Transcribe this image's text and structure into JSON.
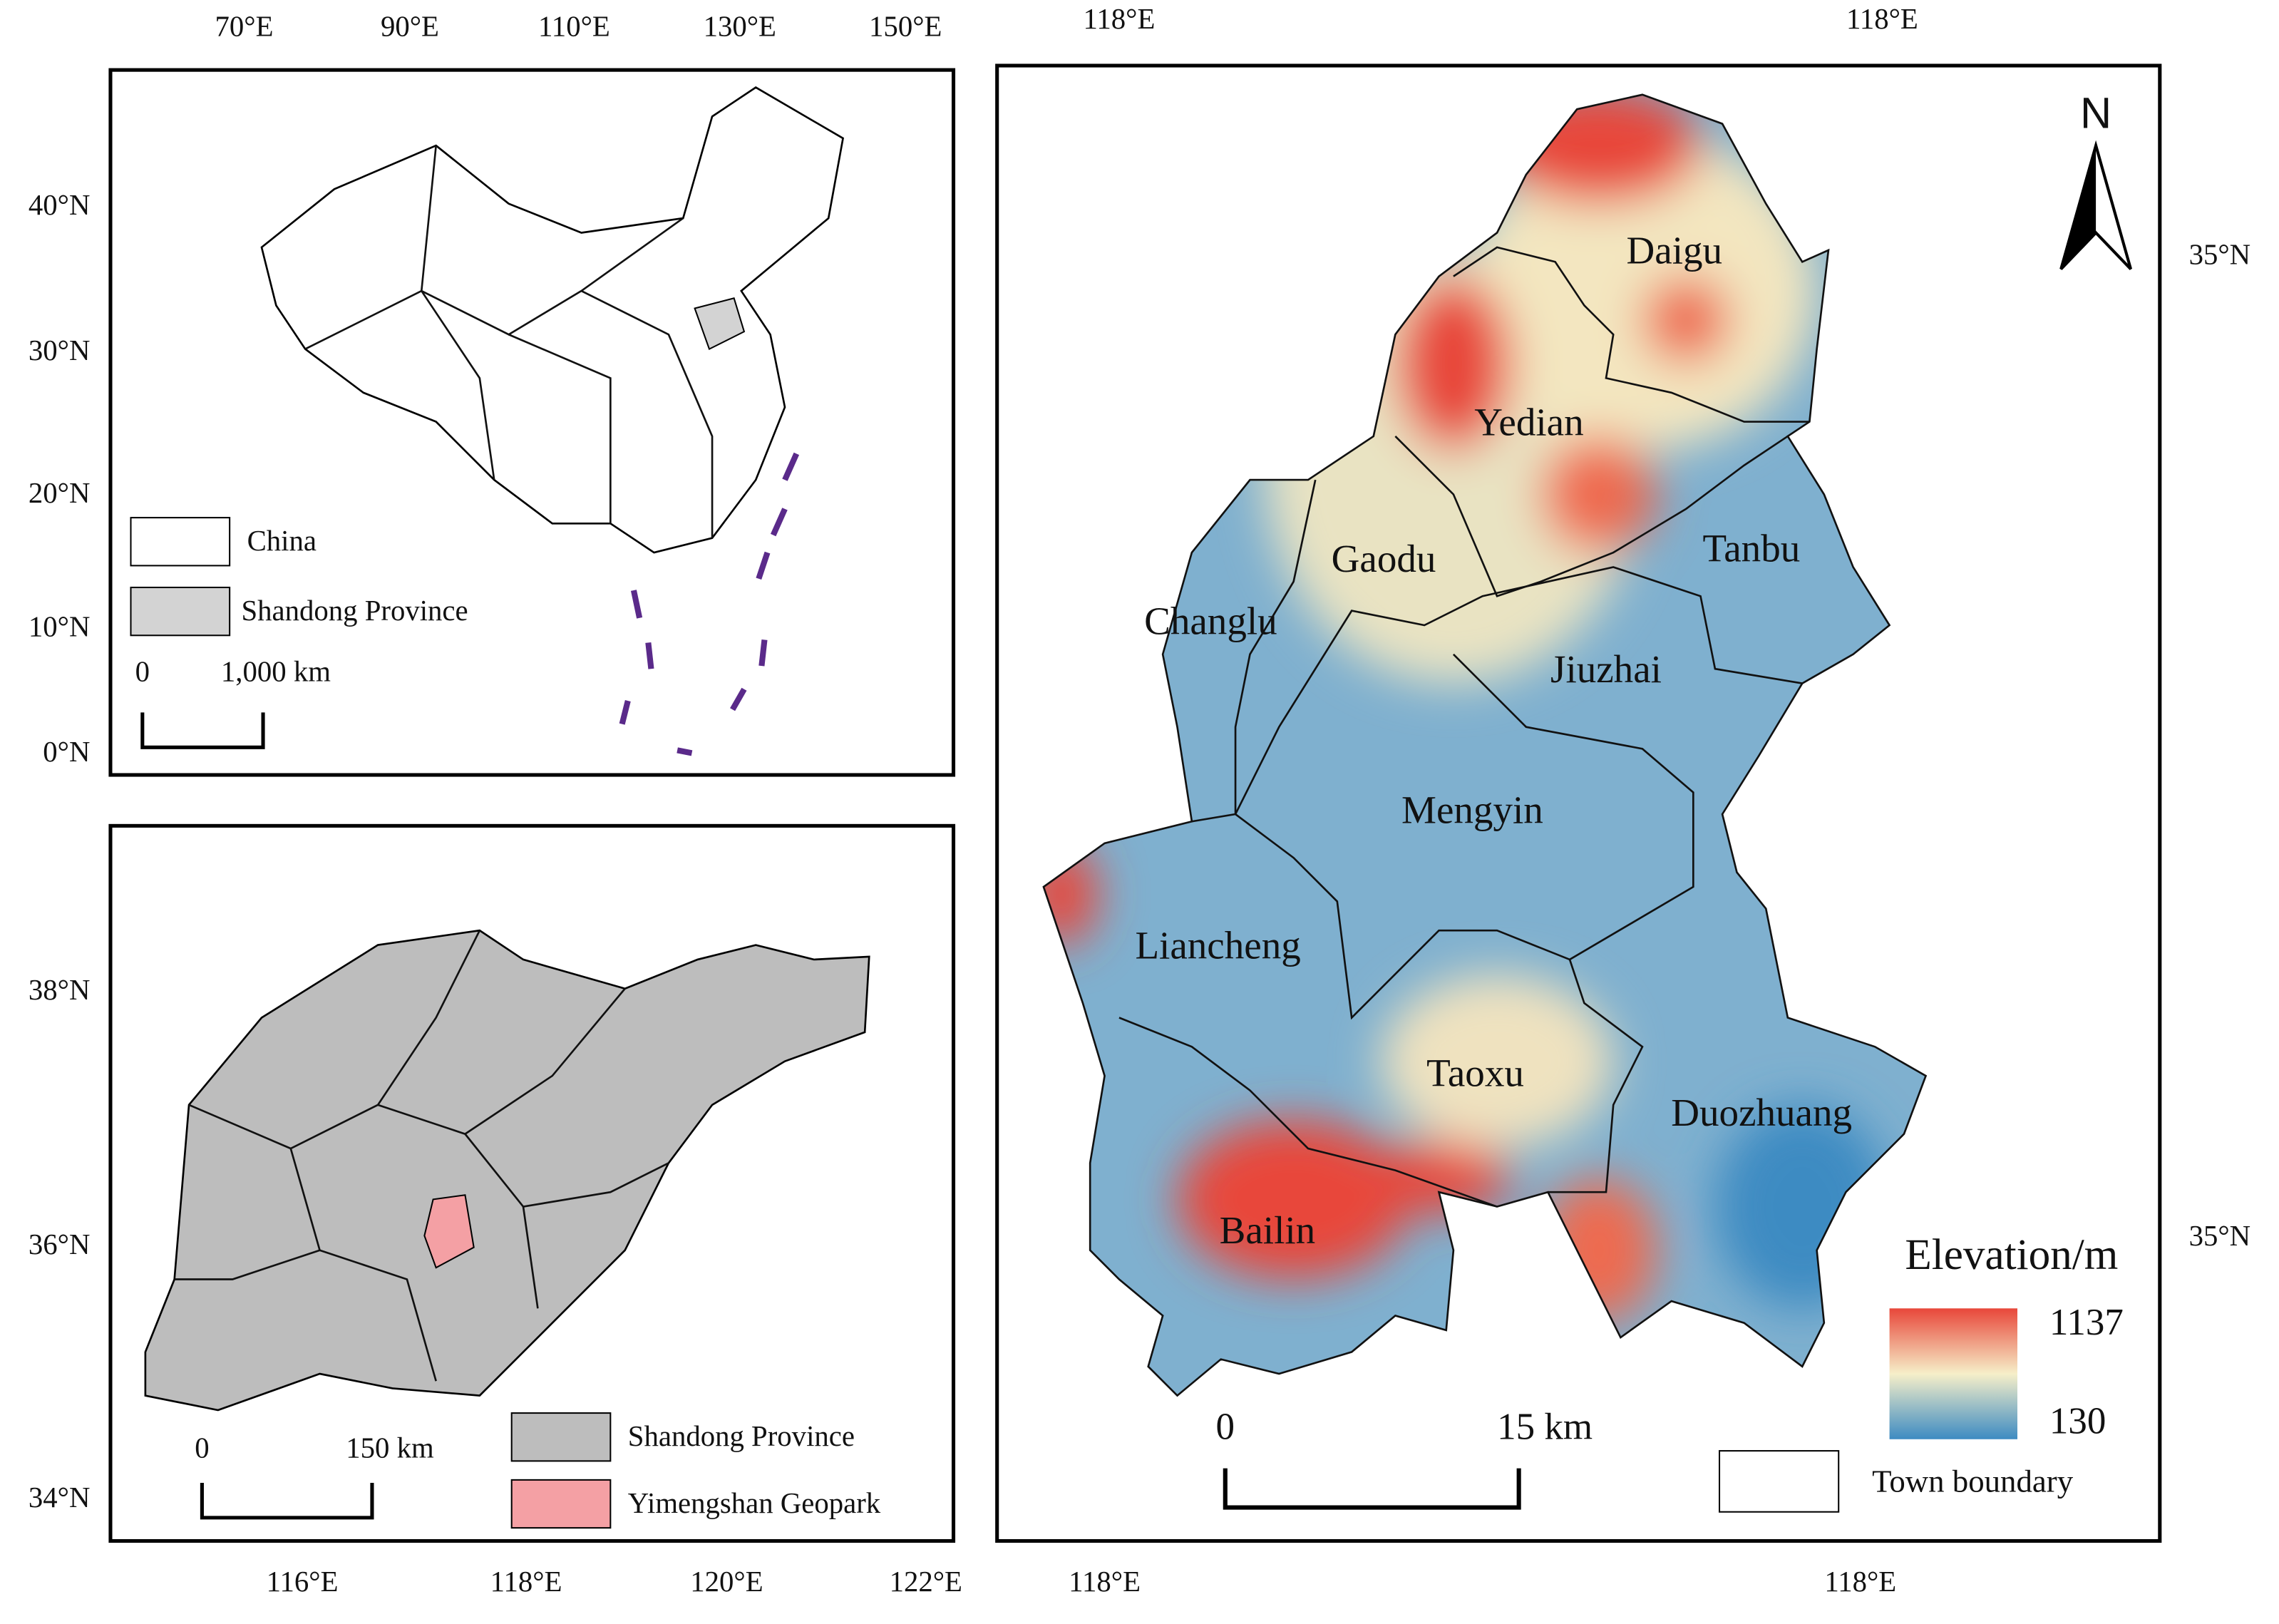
{
  "china_map": {
    "x_ticks": [
      "70°E",
      "90°E",
      "110°E",
      "130°E",
      "150°E"
    ],
    "y_ticks": [
      "40°N",
      "30°N",
      "20°N",
      "10°N",
      "0°N"
    ],
    "legend": [
      "China",
      "Shandong Province"
    ],
    "scale": [
      "0",
      "1,000  km"
    ]
  },
  "shandong_map": {
    "x_ticks": [
      "116°E",
      "118°E",
      "120°E",
      "122°E"
    ],
    "y_ticks": [
      "38°N",
      "36°N",
      "34°N"
    ],
    "legend": [
      "Shandong Province",
      "Yimengshan Geopark"
    ],
    "scale": [
      "0",
      "150  km"
    ]
  },
  "geopark_map": {
    "top_ticks": [
      "118°E",
      "118°E"
    ],
    "bottom_ticks": [
      "118°E",
      "118°E"
    ],
    "right_ticks": [
      "35°N",
      "35°N"
    ],
    "north": "N",
    "towns": [
      "Daigu",
      "Yedian",
      "Gaodu",
      "Tanbu",
      "Changlu",
      "Jiuzhai",
      "Mengyin",
      "Liancheng",
      "Taoxu",
      "Duozhuang",
      "Bailin"
    ],
    "elevation": {
      "title": "Elevation/m",
      "max": "1137",
      "min": "130"
    },
    "scale": [
      "0",
      "15  km"
    ],
    "boundary_legend": "Town boundary"
  }
}
